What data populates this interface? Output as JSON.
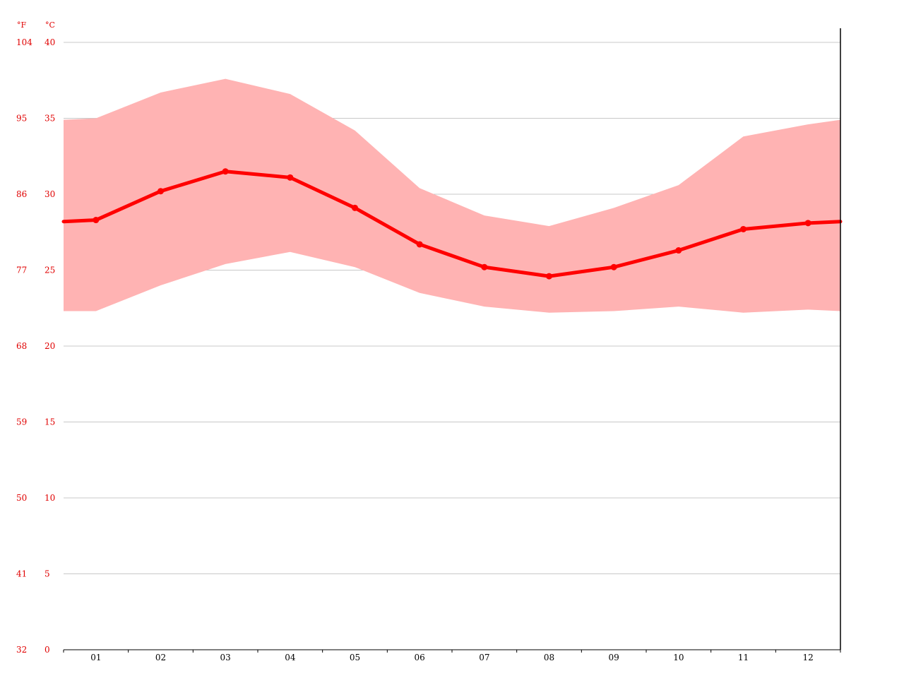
{
  "chart_data": {
    "type": "area",
    "categories": [
      "01",
      "02",
      "03",
      "04",
      "05",
      "06",
      "07",
      "08",
      "09",
      "10",
      "11",
      "12"
    ],
    "series": [
      {
        "values": [
          28.3,
          30.2,
          31.5,
          31.1,
          29.1,
          26.7,
          25.2,
          24.6,
          25.2,
          26.3,
          27.7,
          28.1
        ]
      },
      {
        "values": [
          35.0,
          36.7,
          37.6,
          36.6,
          34.2,
          30.4,
          28.6,
          27.9,
          29.1,
          30.6,
          33.8,
          34.6
        ]
      },
      {
        "values": [
          22.3,
          24.0,
          25.4,
          26.2,
          25.2,
          23.5,
          22.6,
          22.2,
          22.3,
          22.6,
          22.2,
          22.4
        ]
      }
    ],
    "y_axis_c": {
      "unit": "°C",
      "min": 0,
      "max": 40,
      "ticks": [
        "0",
        "5",
        "10",
        "15",
        "20",
        "25",
        "30",
        "35",
        "40"
      ]
    },
    "y_axis_f": {
      "unit": "°F",
      "ticks": [
        "32",
        "41",
        "50",
        "59",
        "68",
        "77",
        "86",
        "95",
        "104"
      ]
    },
    "edge_values": {
      "left": {
        "mean": 28.2,
        "high": 34.9,
        "low": 22.3
      },
      "right": {
        "mean": 28.2,
        "high": 34.9,
        "low": 22.3
      }
    },
    "grid": true,
    "colors": {
      "line": "#ff0000",
      "band": "#ffb3b3",
      "axis_text": "#e00000",
      "grid": "#c8c8c8",
      "tick_text": "#000000"
    }
  }
}
